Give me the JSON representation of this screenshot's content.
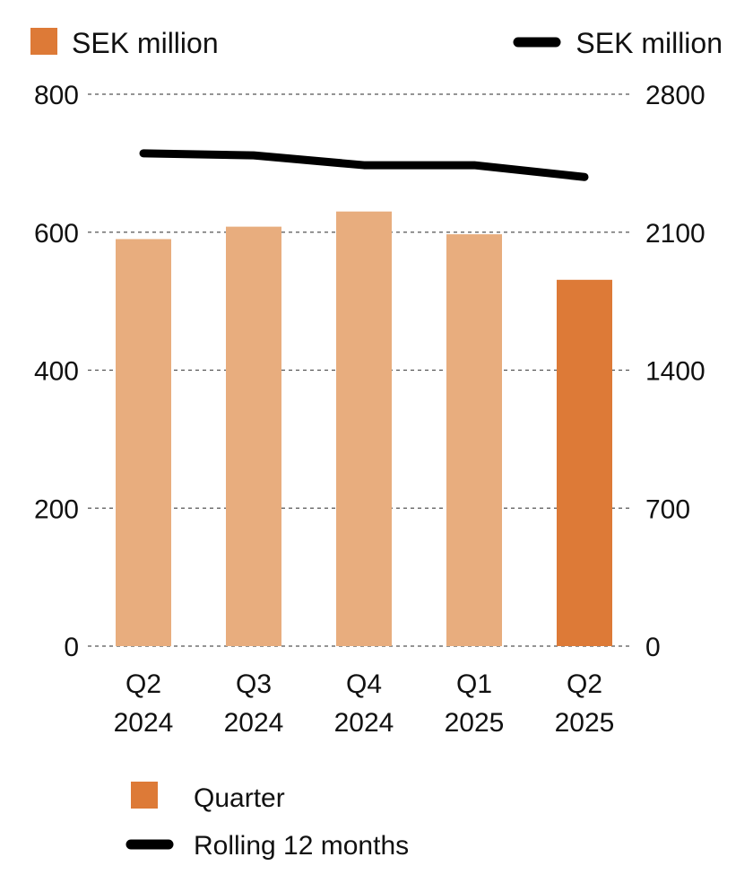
{
  "chart_data": {
    "type": "bar",
    "categories": [
      {
        "line1": "Q2",
        "line2": "2024"
      },
      {
        "line1": "Q3",
        "line2": "2024"
      },
      {
        "line1": "Q4",
        "line2": "2024"
      },
      {
        "line1": "Q1",
        "line2": "2025"
      },
      {
        "line1": "Q2",
        "line2": "2025"
      }
    ],
    "left_axis": {
      "unit_label": "SEK million",
      "ylim": [
        0,
        800
      ],
      "ticks": [
        "0",
        "200",
        "400",
        "600",
        "800"
      ]
    },
    "right_axis": {
      "unit_label": "SEK million",
      "ylim": [
        0,
        2800
      ],
      "ticks": [
        "0",
        "700",
        "1400",
        "2100",
        "2800"
      ]
    },
    "series": [
      {
        "name": "Quarter",
        "kind": "bar",
        "axis": "left",
        "values": [
          590,
          608,
          630,
          597,
          531
        ]
      },
      {
        "name": "Rolling 12 months",
        "kind": "line",
        "axis": "right",
        "values": [
          2500,
          2490,
          2440,
          2440,
          2380
        ]
      }
    ],
    "grid": true,
    "legend_position": "bottom-left",
    "colors": {
      "bar": "#e8ad7e",
      "bar_highlight": "#dd7a37",
      "line": "#000000",
      "grid": "#555555",
      "text": "#111111"
    }
  }
}
